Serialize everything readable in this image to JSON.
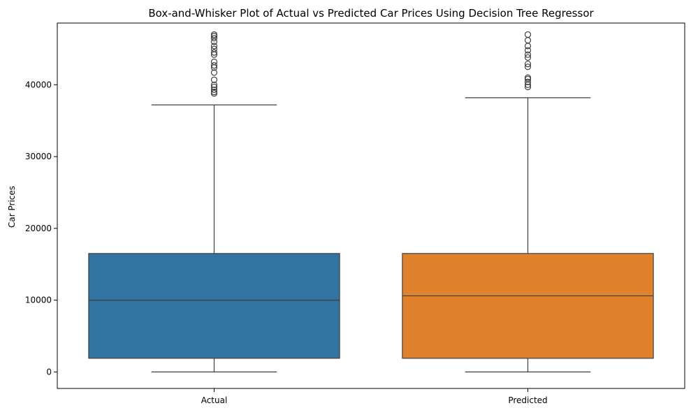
{
  "chart_data": {
    "type": "box",
    "title": "Box-and-Whisker Plot of Actual vs Predicted Car Prices Using Decision Tree Regressor",
    "xlabel": "",
    "ylabel": "Car Prices",
    "ylim": [
      -2300,
      48600
    ],
    "yticks": [
      0,
      10000,
      20000,
      30000,
      40000
    ],
    "grid": false,
    "categories": [
      "Actual",
      "Predicted"
    ],
    "boxes": [
      {
        "category": "Actual",
        "color": "#3274a1",
        "whisker_low": 0,
        "q1": 1900,
        "median": 10000,
        "q3": 16500,
        "whisker_high": 37200,
        "outliers": [
          38800,
          39000,
          39300,
          39700,
          40000,
          40700,
          41700,
          42400,
          42700,
          43200,
          44200,
          44500,
          45000,
          45400,
          46000,
          46500,
          46800,
          47000
        ]
      },
      {
        "category": "Predicted",
        "color": "#e1812c",
        "whisker_low": 0,
        "q1": 1900,
        "median": 10600,
        "q3": 16500,
        "whisker_high": 38200,
        "outliers": [
          39700,
          40000,
          40400,
          40800,
          41000,
          42500,
          42900,
          43800,
          44200,
          44800,
          45400,
          46200,
          47000
        ]
      }
    ]
  }
}
